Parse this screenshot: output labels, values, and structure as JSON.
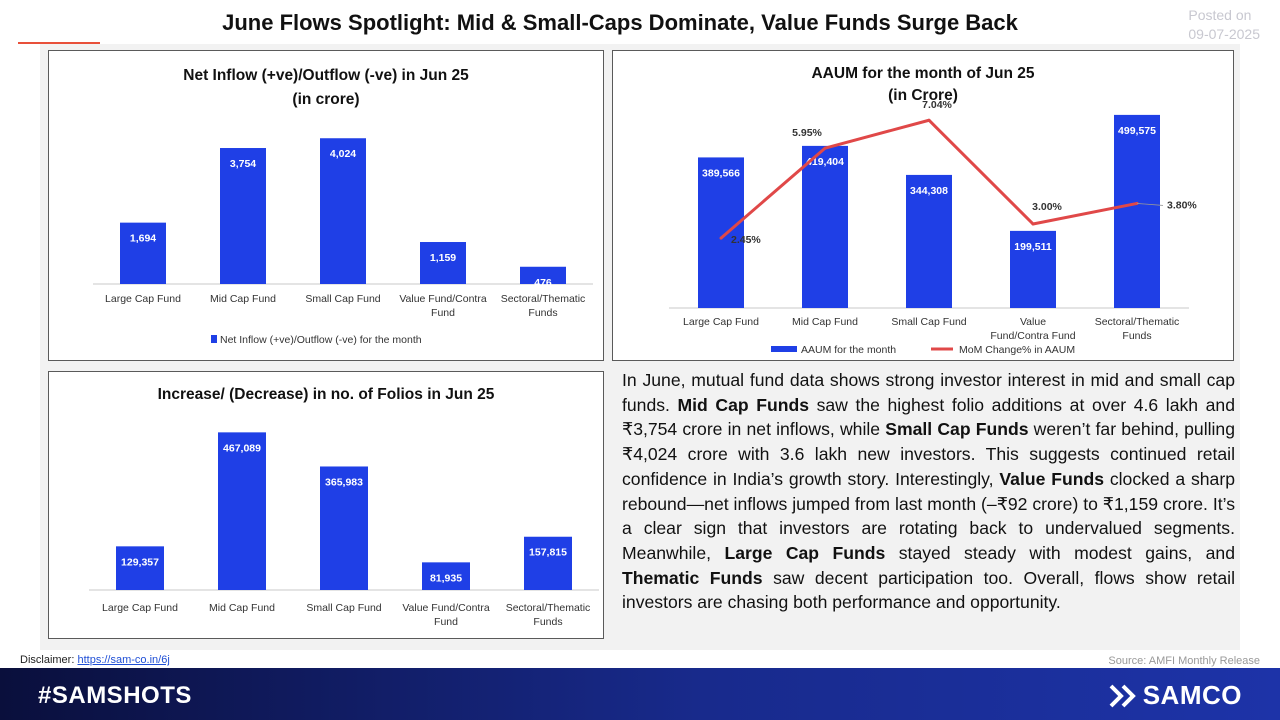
{
  "header": {
    "title": "June Flows Spotlight: Mid & Small-Caps Dominate, Value Funds Surge Back",
    "posted_label": "Posted on",
    "posted_date": "09-07-2025"
  },
  "colors": {
    "bar": "#1f3fe6",
    "line": "#e04848",
    "accent": "#e8503a",
    "footer": "#182a8c"
  },
  "chart_data": [
    {
      "id": "net-flow",
      "type": "bar",
      "title": "Net Inflow (+ve)/Outflow (-ve) in Jun 25",
      "subtitle": "(in crore)",
      "categories": [
        "Large Cap Fund",
        "Mid Cap Fund",
        "Small Cap Fund",
        "Value Fund/Contra Fund",
        "Sectoral/Thematic Funds"
      ],
      "series": [
        {
          "name": "Net Inflow (+ve)/Outflow (-ve) for the month",
          "values": [
            1694,
            3754,
            4024,
            1159,
            476
          ]
        }
      ],
      "data_labels": [
        "1,694",
        "3,754",
        "4,024",
        "1,159",
        "476"
      ],
      "legend": "bottom",
      "grid": false
    },
    {
      "id": "aaum",
      "type": "bar",
      "title": "AAUM for the month of Jun 25",
      "subtitle": "(in Crore)",
      "categories": [
        "Large Cap Fund",
        "Mid Cap Fund",
        "Small Cap Fund",
        "Value Fund/Contra Fund",
        "Sectoral/Thematic Funds"
      ],
      "series": [
        {
          "name": "AAUM for the month",
          "type": "bar",
          "values": [
            389566,
            419404,
            344308,
            199511,
            499575
          ]
        },
        {
          "name": "MoM Change% in AAUM",
          "type": "line",
          "values": [
            2.45,
            5.95,
            7.04,
            3.0,
            3.8
          ]
        }
      ],
      "data_labels": [
        "389,566",
        "419,404",
        "344,308",
        "199,511",
        "499,575"
      ],
      "line_labels": [
        "2.45%",
        "5.95%",
        "7.04%",
        "3.00%",
        "3.80%"
      ],
      "legend": "bottom",
      "grid": false
    },
    {
      "id": "folios",
      "type": "bar",
      "title": "Increase/ (Decrease) in no. of Folios in Jun 25",
      "categories": [
        "Large Cap Fund",
        "Mid Cap Fund",
        "Small Cap Fund",
        "Value Fund/Contra Fund",
        "Sectoral/Thematic Funds"
      ],
      "series": [
        {
          "values": [
            129357,
            467089,
            365983,
            81935,
            157815
          ]
        }
      ],
      "data_labels": [
        "129,357",
        "467,089",
        "365,983",
        "81,935",
        "157,815"
      ],
      "grid": false
    }
  ],
  "description": {
    "segments": [
      {
        "text": "In June, mutual fund data shows strong investor interest in mid and small cap funds. ",
        "bold": false
      },
      {
        "text": "Mid Cap Funds",
        "bold": true
      },
      {
        "text": " saw the highest folio additions at over 4.6 lakh and ₹3,754 crore in net inflows, while ",
        "bold": false
      },
      {
        "text": "Small Cap Funds",
        "bold": true
      },
      {
        "text": " weren’t far behind, pulling ₹4,024 crore with 3.6 lakh new investors. This suggests continued retail confidence in India’s growth story. Interestingly, ",
        "bold": false
      },
      {
        "text": "Value Funds",
        "bold": true
      },
      {
        "text": " clocked a sharp rebound—net inflows jumped from last month (–₹92 crore) to ₹1,159 crore. It’s a clear sign that investors are rotating back to undervalued segments. Meanwhile, ",
        "bold": false
      },
      {
        "text": "Large Cap Funds",
        "bold": true
      },
      {
        "text": " stayed steady with modest gains, and ",
        "bold": false
      },
      {
        "text": "Thematic Funds",
        "bold": true
      },
      {
        "text": " saw decent participation too. Overall, flows show retail investors are chasing both performance and opportunity.",
        "bold": false
      }
    ]
  },
  "footer": {
    "disclaimer_label": "Disclaimer:",
    "disclaimer_link": "https://sam-co.in/6j",
    "source": "Source: AMFI Monthly Release",
    "hashtag": "#SAMSHOTS",
    "brand": "SAMCO"
  }
}
